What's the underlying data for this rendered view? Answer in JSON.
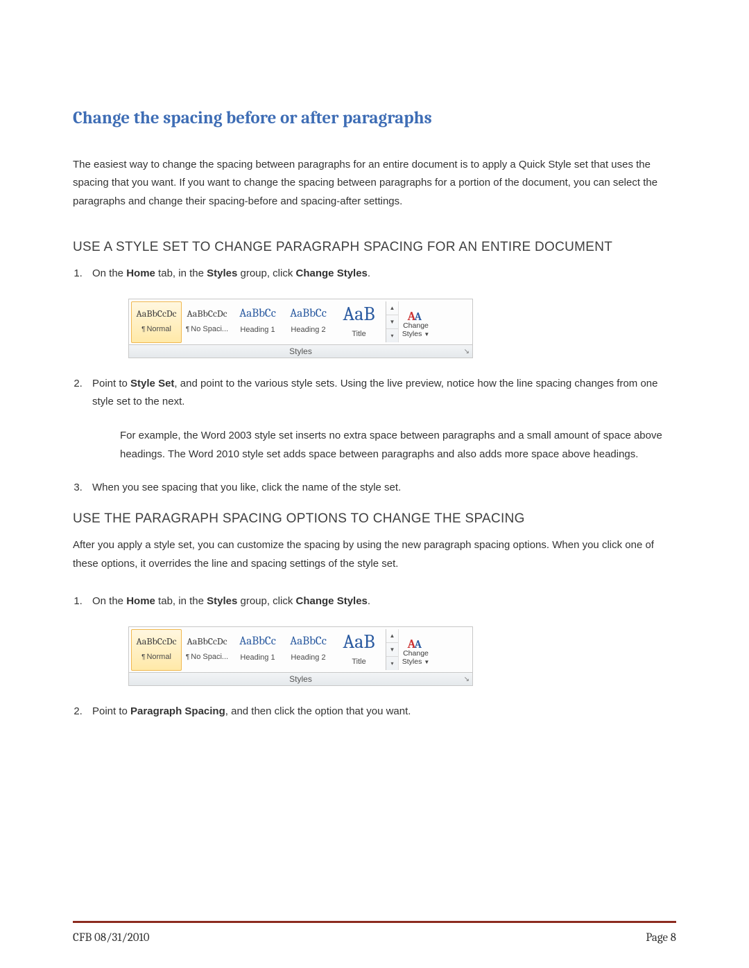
{
  "title": "Change the spacing before or after paragraphs",
  "intro": "The easiest way to change the spacing between paragraphs for an entire document is to apply a Quick Style set that uses the spacing that you want. If you want to change the spacing between paragraphs for a portion of the document, you can select the paragraphs and change their spacing-before and spacing-after settings.",
  "section1": {
    "heading": "USE A STYLE SET TO CHANGE PARAGRAPH SPACING FOR AN ENTIRE DOCUMENT",
    "step1": {
      "pre": "On the ",
      "b1": "Home",
      "mid": " tab, in the ",
      "b2": "Styles",
      "mid2": " group, click ",
      "b3": "Change Styles",
      "post": "."
    },
    "step2": {
      "pre": "Point to ",
      "b1": "Style Set",
      "post": ", and point to the various style sets. Using the live preview, notice how the line spacing changes from one style set to the next."
    },
    "step2_sub": "For example, the Word 2003 style set inserts no extra space between paragraphs and a small amount of space above headings. The Word 2010 style set adds space between paragraphs and also adds more space above headings.",
    "step3": "When you see spacing that you like, click the name of the style set."
  },
  "section2": {
    "heading": "USE THE PARAGRAPH SPACING OPTIONS TO CHANGE THE SPACING",
    "intro": "After you apply a style set, you can customize the spacing by using the new paragraph spacing options. When you click one of these options, it overrides the line and spacing settings of the style set.",
    "step1": {
      "pre": "On the ",
      "b1": "Home",
      "mid": " tab, in the ",
      "b2": "Styles",
      "mid2": " group, click ",
      "b3": "Change Styles",
      "post": "."
    },
    "step2": {
      "pre": "Point to ",
      "b1": "Paragraph Spacing",
      "post": ", and then click the option that you want."
    }
  },
  "gallery": {
    "tiles": [
      {
        "sample": "AaBbCcDc",
        "label": "Normal",
        "pilcrow": true,
        "sizeClass": "small",
        "selected": true
      },
      {
        "sample": "AaBbCcDc",
        "label": "No Spaci...",
        "pilcrow": true,
        "sizeClass": "small",
        "selected": false
      },
      {
        "sample": "AaBbCc",
        "label": "Heading 1",
        "pilcrow": false,
        "sizeClass": "med",
        "selected": false
      },
      {
        "sample": "AaBbCc",
        "label": "Heading 2",
        "pilcrow": false,
        "sizeClass": "med",
        "selected": false
      },
      {
        "sample": "AaB",
        "label": "Title",
        "pilcrow": false,
        "sizeClass": "big",
        "selected": false
      }
    ],
    "change_label_1": "Change",
    "change_label_2": "Styles",
    "group_label": "Styles"
  },
  "colors": {
    "heading_blue": "#3e6db5",
    "footer_rule": "#8c2b1f"
  },
  "footer": {
    "left": "CFB 08/31/2010",
    "right": "Page 8"
  }
}
